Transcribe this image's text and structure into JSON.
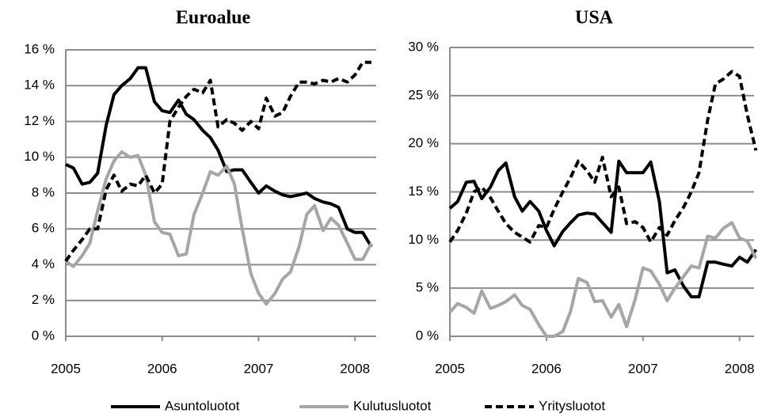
{
  "chart_data": [
    {
      "type": "line",
      "title": "Euroalue",
      "x": [
        2005,
        2005.08,
        2005.17,
        2005.25,
        2005.33,
        2005.42,
        2005.5,
        2005.58,
        2005.67,
        2005.75,
        2005.83,
        2005.92,
        2006,
        2006.08,
        2006.17,
        2006.25,
        2006.33,
        2006.42,
        2006.5,
        2006.58,
        2006.67,
        2006.75,
        2006.83,
        2006.92,
        2007,
        2007.08,
        2007.17,
        2007.25,
        2007.33,
        2007.42,
        2007.5,
        2007.58,
        2007.67,
        2007.75,
        2007.83,
        2007.92,
        2008,
        2008.08,
        2008.17
      ],
      "series": [
        {
          "color": "#000000",
          "dash": false,
          "values": [
            9.6,
            9.4,
            8.5,
            8.6,
            9.1,
            11.8,
            13.5,
            14.0,
            14.4,
            15.0,
            15.0,
            13.1,
            12.6,
            12.5,
            13.2,
            12.4,
            12.1,
            11.5,
            11.1,
            10.4,
            9.2,
            9.3,
            9.3,
            8.6,
            8.0,
            8.4,
            8.1,
            7.9,
            7.8,
            7.9,
            8.0,
            7.7,
            7.5,
            7.4,
            7.2,
            6.0,
            5.8,
            5.8,
            5.0
          ]
        },
        {
          "color": "#a6a6a6",
          "dash": false,
          "values": [
            4.2,
            3.9,
            4.5,
            5.2,
            7.0,
            8.8,
            9.8,
            10.3,
            10.0,
            10.1,
            9.0,
            6.4,
            5.8,
            5.7,
            4.5,
            4.6,
            6.8,
            8.0,
            9.2,
            9.0,
            9.5,
            8.5,
            6.0,
            3.5,
            2.4,
            1.8,
            2.4,
            3.2,
            3.6,
            5.0,
            6.8,
            7.3,
            5.9,
            6.6,
            6.2,
            5.2,
            4.3,
            4.3,
            5.2
          ]
        },
        {
          "color": "#000000",
          "dash": true,
          "values": [
            4.2,
            4.8,
            5.4,
            6.0,
            6.0,
            8.2,
            9.0,
            8.1,
            8.5,
            8.4,
            9.0,
            8.0,
            8.5,
            12.0,
            12.8,
            13.4,
            13.8,
            13.6,
            14.3,
            11.7,
            12.1,
            11.9,
            11.5,
            12.0,
            11.6,
            13.3,
            12.3,
            12.5,
            13.4,
            14.2,
            14.2,
            14.1,
            14.3,
            14.2,
            14.4,
            14.2,
            14.6,
            15.3,
            15.3
          ]
        }
      ],
      "xlim": [
        2005,
        2008.22
      ],
      "xticks": [
        2005,
        2006,
        2007,
        2008
      ],
      "ylim": [
        0,
        16
      ],
      "yticks": [
        {
          "value": 0,
          "label": "0 %"
        },
        {
          "value": 2,
          "label": "2 %"
        },
        {
          "value": 4,
          "label": "4 %"
        },
        {
          "value": 6,
          "label": "6 %"
        },
        {
          "value": 8,
          "label": "8 %"
        },
        {
          "value": 10,
          "label": "10 %"
        },
        {
          "value": 12,
          "label": "12 %"
        },
        {
          "value": 14,
          "label": "14 %"
        },
        {
          "value": 16,
          "label": "16 %"
        }
      ],
      "grid": true
    },
    {
      "type": "line",
      "title": "USA",
      "x": [
        2005,
        2005.08,
        2005.17,
        2005.25,
        2005.33,
        2005.42,
        2005.5,
        2005.58,
        2005.67,
        2005.75,
        2005.83,
        2005.92,
        2006,
        2006.08,
        2006.17,
        2006.25,
        2006.33,
        2006.42,
        2006.5,
        2006.58,
        2006.67,
        2006.75,
        2006.83,
        2006.92,
        2007,
        2007.08,
        2007.17,
        2007.25,
        2007.33,
        2007.42,
        2007.5,
        2007.58,
        2007.67,
        2007.75,
        2007.83,
        2007.92,
        2008,
        2008.08,
        2008.17
      ],
      "series": [
        {
          "color": "#000000",
          "dash": false,
          "values": [
            13.3,
            14,
            16,
            16.1,
            14.3,
            15.5,
            17.2,
            18,
            14.5,
            13,
            14,
            13,
            11,
            9.4,
            10.9,
            11.8,
            12.6,
            12.8,
            12.7,
            11.8,
            10.8,
            18.2,
            17,
            17,
            17,
            18.1,
            14,
            6.6,
            6.9,
            5.2,
            4.1,
            4.1,
            7.7,
            7.7,
            7.5,
            7.3,
            8.2,
            7.7,
            9.0
          ]
        },
        {
          "color": "#a6a6a6",
          "dash": false,
          "values": [
            2.5,
            3.4,
            3.0,
            2.4,
            4.7,
            2.9,
            3.2,
            3.6,
            4.3,
            3.2,
            2.8,
            1.2,
            0,
            0,
            0.5,
            2.6,
            6.0,
            5.6,
            3.6,
            3.7,
            2.0,
            3.3,
            1.0,
            3.9,
            7.1,
            6.8,
            5.4,
            3.7,
            5.0,
            6.2,
            7.3,
            7.1,
            10.4,
            10.2,
            11.2,
            11.8,
            10.2,
            9.9,
            8.1
          ]
        },
        {
          "color": "#000000",
          "dash": true,
          "values": [
            9.8,
            11,
            12.8,
            15,
            15.5,
            14.4,
            13,
            11.7,
            10.8,
            10.3,
            9.8,
            11.5,
            11.3,
            13.2,
            15,
            16.5,
            18.2,
            17.2,
            16,
            18.6,
            14.5,
            15.5,
            11.7,
            11.9,
            11.3,
            9.8,
            11.3,
            10.5,
            12.0,
            13.4,
            15.0,
            17.0,
            22.5,
            26.2,
            26.7,
            27.5,
            27.0,
            23.0,
            19.3
          ]
        }
      ],
      "xlim": [
        2005,
        2008.15
      ],
      "xticks": [
        2005,
        2006,
        2007,
        2008
      ],
      "ylim": [
        0,
        30
      ],
      "yticks": [
        {
          "value": 0,
          "label": "0 %"
        },
        {
          "value": 5,
          "label": "5 %"
        },
        {
          "value": 10,
          "label": "10 %"
        },
        {
          "value": 15,
          "label": "15 %"
        },
        {
          "value": 20,
          "label": "20 %"
        },
        {
          "value": 25,
          "label": "25 %"
        },
        {
          "value": 30,
          "label": "30 %"
        }
      ],
      "grid": true
    }
  ],
  "legend": [
    {
      "name": "Asuntoluotot",
      "color": "#000000",
      "dash": false
    },
    {
      "name": "Kulutusluotot",
      "color": "#a6a6a6",
      "dash": false
    },
    {
      "name": "Yritysluotot",
      "color": "#000000",
      "dash": true
    }
  ]
}
